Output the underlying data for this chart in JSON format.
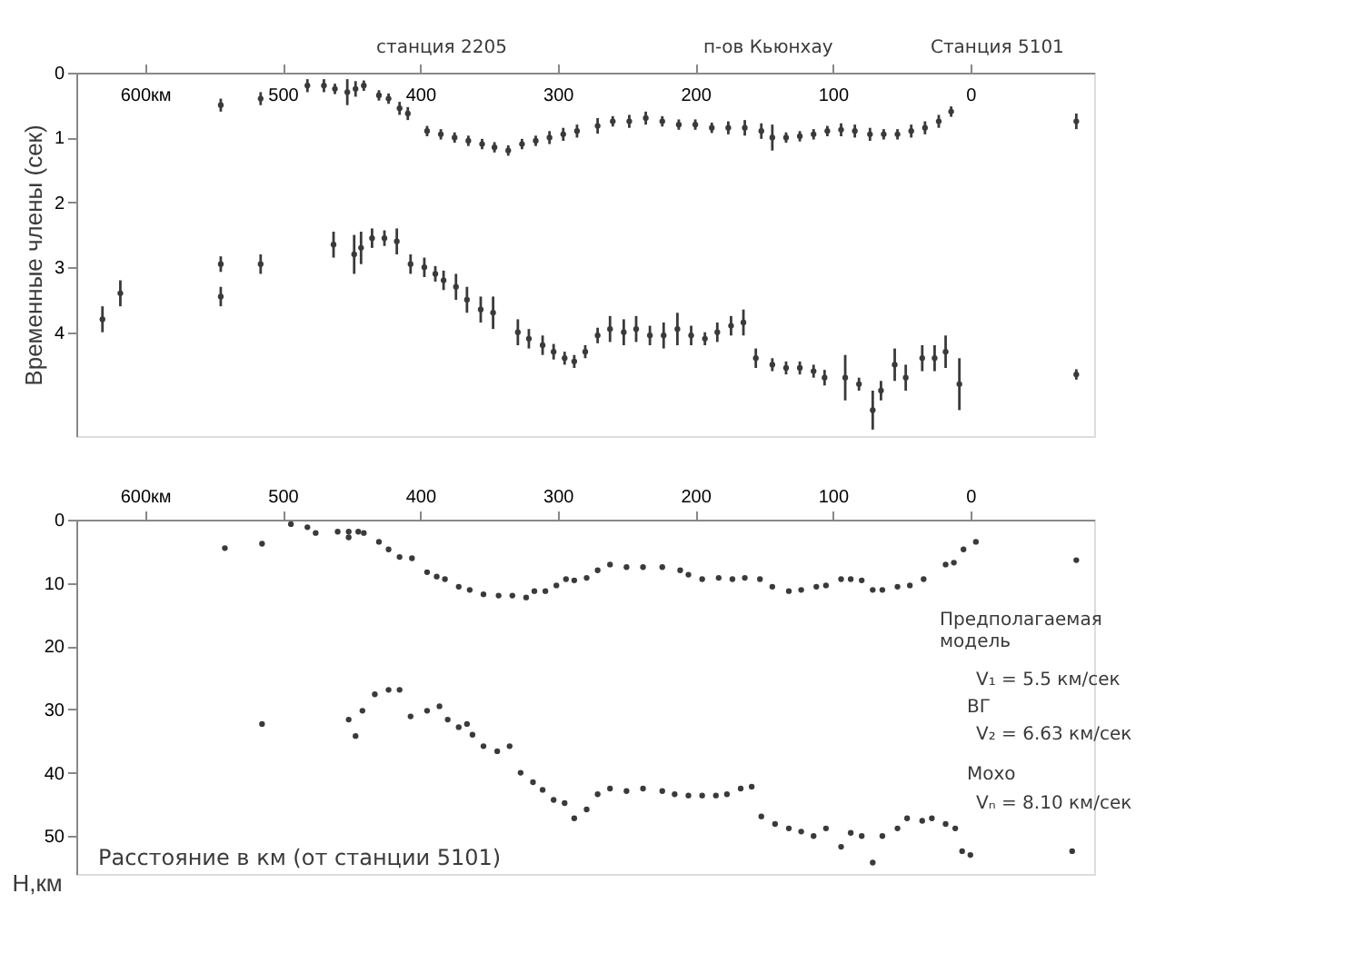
{
  "chart_data": [
    {
      "type": "scatter",
      "ylabel": "Временные члены (сек)",
      "xlim": [
        650,
        -90
      ],
      "ylim": [
        5.6,
        0
      ],
      "xticks": [
        {
          "value": 600,
          "label": "600км"
        },
        500,
        400,
        300,
        200,
        100,
        0
      ],
      "yticks": [
        0,
        1,
        2,
        3,
        4
      ],
      "grid": false,
      "marker": "circle",
      "annotations": [
        "станция 2205",
        "п-ов Кьюнхау",
        "Станция 5101"
      ],
      "series": [
        {
          "color": "#3a3a3a",
          "x": [
            545,
            516,
            482,
            470,
            462,
            453,
            447,
            441,
            430,
            423,
            415,
            409,
            395,
            385,
            375,
            365,
            355,
            346,
            336,
            326,
            316,
            306,
            296,
            286,
            271,
            260,
            248,
            236,
            224,
            212,
            200,
            188,
            176,
            164,
            152,
            144,
            134,
            124,
            114,
            104,
            94,
            84,
            73,
            63,
            53,
            43,
            33,
            23,
            14,
            -77
          ],
          "values": [
            0.5,
            0.4,
            0.2,
            0.2,
            0.25,
            0.3,
            0.25,
            0.2,
            0.35,
            0.4,
            0.55,
            0.63,
            0.9,
            0.95,
            1.0,
            1.05,
            1.1,
            1.15,
            1.2,
            1.1,
            1.05,
            1.0,
            0.95,
            0.9,
            0.82,
            0.75,
            0.75,
            0.7,
            0.75,
            0.8,
            0.8,
            0.85,
            0.85,
            0.85,
            0.9,
            1.0,
            1.0,
            0.98,
            0.95,
            0.9,
            0.88,
            0.9,
            0.95,
            0.95,
            0.95,
            0.9,
            0.85,
            0.75,
            0.6,
            0.75
          ],
          "errors": [
            0.1,
            0.1,
            0.1,
            0.1,
            0.08,
            0.2,
            0.12,
            0.08,
            0.08,
            0.08,
            0.1,
            0.1,
            0.08,
            0.08,
            0.08,
            0.08,
            0.08,
            0.08,
            0.08,
            0.08,
            0.08,
            0.1,
            0.1,
            0.1,
            0.12,
            0.08,
            0.1,
            0.1,
            0.08,
            0.08,
            0.08,
            0.08,
            0.1,
            0.12,
            0.12,
            0.2,
            0.08,
            0.08,
            0.08,
            0.08,
            0.1,
            0.1,
            0.1,
            0.08,
            0.08,
            0.1,
            0.1,
            0.1,
            0.08,
            0.12
          ]
        },
        {
          "color": "#3a3a3a",
          "x": [
            631,
            618,
            545,
            545,
            516,
            463,
            448,
            443,
            435,
            426,
            417,
            407,
            397,
            389,
            383,
            374,
            366,
            356,
            347,
            329,
            321,
            311,
            303,
            295,
            288,
            280,
            271,
            262,
            252,
            243,
            233,
            223,
            213,
            203,
            193,
            184,
            174,
            165,
            156,
            144,
            134,
            124,
            114,
            106,
            91,
            81,
            71,
            65,
            55,
            47,
            35,
            26,
            18,
            8,
            -77
          ],
          "values": [
            3.8,
            3.4,
            2.95,
            3.45,
            2.95,
            2.65,
            2.8,
            2.7,
            2.55,
            2.55,
            2.6,
            2.95,
            3.0,
            3.1,
            3.2,
            3.3,
            3.5,
            3.65,
            3.7,
            4.0,
            4.1,
            4.2,
            4.3,
            4.4,
            4.45,
            4.3,
            4.05,
            3.95,
            4.0,
            3.95,
            4.05,
            4.05,
            3.95,
            4.05,
            4.1,
            4.0,
            3.9,
            3.85,
            4.4,
            4.5,
            4.55,
            4.55,
            4.6,
            4.7,
            4.7,
            4.8,
            5.2,
            4.9,
            4.5,
            4.7,
            4.4,
            4.4,
            4.3,
            4.8,
            4.65
          ],
          "errors": [
            0.2,
            0.2,
            0.12,
            0.15,
            0.15,
            0.2,
            0.3,
            0.25,
            0.15,
            0.12,
            0.2,
            0.15,
            0.15,
            0.12,
            0.15,
            0.2,
            0.2,
            0.2,
            0.25,
            0.2,
            0.15,
            0.15,
            0.12,
            0.1,
            0.1,
            0.1,
            0.12,
            0.2,
            0.2,
            0.2,
            0.15,
            0.2,
            0.25,
            0.15,
            0.1,
            0.15,
            0.15,
            0.2,
            0.15,
            0.1,
            0.1,
            0.1,
            0.1,
            0.12,
            0.35,
            0.1,
            0.3,
            0.15,
            0.25,
            0.2,
            0.2,
            0.2,
            0.25,
            0.4,
            0.08
          ]
        }
      ]
    },
    {
      "type": "scatter",
      "ylabel": "H,км",
      "xlabel": "Расстояние в км (от станции 5101)",
      "xlim": [
        650,
        -90
      ],
      "ylim": [
        56,
        0
      ],
      "xticks": [
        {
          "value": 600,
          "label": "600км"
        },
        500,
        400,
        300,
        200,
        100,
        0
      ],
      "yticks": [
        0,
        10,
        20,
        30,
        40,
        50
      ],
      "grid": false,
      "marker": "circle",
      "annotations": [
        "Предполагаемая модель",
        "V₁ = 5.5 км/сек",
        "ВГ",
        "V₂ = 6.63 км/сек",
        "Мохо",
        "Vₙ = 8.10 км/сек"
      ],
      "series": [
        {
          "color": "#3a3a3a",
          "x": [
            542,
            515,
            494,
            482,
            476,
            460,
            452,
            452,
            445,
            441,
            430,
            423,
            415,
            406,
            395,
            388,
            382,
            372,
            364,
            354,
            343,
            333,
            323,
            317,
            309,
            301,
            294,
            288,
            279,
            271,
            262,
            250,
            238,
            224,
            211,
            205,
            195,
            183,
            173,
            164,
            153,
            144,
            132,
            123,
            112,
            105,
            94,
            87,
            79,
            71,
            64,
            53,
            44,
            34,
            18,
            12,
            5,
            -4,
            -77
          ],
          "values": [
            4.5,
            3.8,
            0.7,
            1.2,
            2.1,
            1.9,
            2.8,
            1.9,
            1.9,
            2.1,
            3.5,
            4.7,
            5.9,
            6.1,
            8.3,
            9.0,
            9.4,
            10.6,
            11.1,
            11.8,
            12.0,
            12.0,
            12.3,
            11.3,
            11.3,
            10.4,
            9.4,
            9.6,
            9.2,
            8.0,
            7.1,
            7.5,
            7.5,
            7.5,
            8.0,
            8.7,
            9.4,
            9.2,
            9.4,
            9.2,
            9.4,
            10.6,
            11.3,
            11.1,
            10.6,
            10.4,
            9.4,
            9.4,
            9.6,
            11.1,
            11.1,
            10.6,
            10.4,
            9.4,
            7.1,
            6.8,
            4.7,
            3.5,
            6.4
          ]
        },
        {
          "color": "#3a3a3a",
          "x": [
            515,
            452,
            447,
            442,
            433,
            423,
            415,
            407,
            395,
            386,
            380,
            372,
            366,
            362,
            354,
            344,
            335,
            327,
            318,
            311,
            303,
            295,
            288,
            279,
            271,
            262,
            250,
            238,
            224,
            215,
            205,
            195,
            185,
            177,
            167,
            159,
            152,
            142,
            132,
            123,
            114,
            105,
            94,
            87,
            79,
            71,
            64,
            53,
            46,
            35,
            28,
            18,
            11,
            6,
            0,
            -74
          ],
          "values": [
            32.3,
            31.6,
            34.2,
            30.2,
            27.6,
            26.9,
            26.9,
            31.1,
            30.2,
            29.5,
            31.6,
            32.8,
            32.3,
            34.0,
            35.8,
            36.6,
            35.8,
            40.0,
            41.5,
            42.7,
            44.3,
            44.8,
            47.2,
            45.8,
            43.4,
            42.5,
            42.9,
            42.5,
            42.9,
            43.4,
            43.6,
            43.6,
            43.6,
            43.4,
            42.5,
            42.2,
            46.9,
            48.1,
            48.8,
            49.3,
            50.0,
            48.8,
            51.7,
            49.5,
            50.0,
            54.2,
            50.0,
            48.8,
            47.2,
            47.6,
            47.2,
            48.1,
            48.8,
            52.4,
            53.0,
            52.4
          ]
        }
      ]
    }
  ]
}
